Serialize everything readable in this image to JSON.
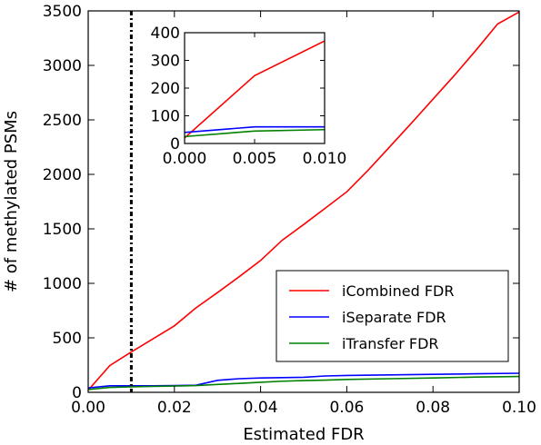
{
  "chart_data": {
    "type": "line",
    "title": "",
    "xlabel": "Estimated FDR",
    "ylabel": "# of methylated PSMs",
    "xlim": [
      0,
      0.1
    ],
    "ylim": [
      0,
      3500
    ],
    "x_ticks": [
      0.0,
      0.02,
      0.04,
      0.06,
      0.08,
      0.1
    ],
    "x_tick_labels": [
      "0.00",
      "0.02",
      "0.04",
      "0.06",
      "0.08",
      "0.10"
    ],
    "y_ticks": [
      0,
      500,
      1000,
      1500,
      2000,
      2500,
      3000,
      3500
    ],
    "y_tick_labels": [
      "0",
      "500",
      "1000",
      "1500",
      "2000",
      "2500",
      "3000",
      "3500"
    ],
    "grid": false,
    "legend_position": "bottom-right",
    "reference_line": {
      "x": 0.01,
      "style": "dash-dot",
      "color": "#000000"
    },
    "series": [
      {
        "name": "iCombined FDR",
        "color": "#ff0000",
        "x": [
          0.0,
          0.005,
          0.01,
          0.015,
          0.02,
          0.025,
          0.03,
          0.035,
          0.04,
          0.045,
          0.05,
          0.055,
          0.06,
          0.065,
          0.07,
          0.075,
          0.08,
          0.085,
          0.09,
          0.095,
          0.1
        ],
        "y": [
          20,
          245,
          370,
          490,
          610,
          775,
          915,
          1060,
          1210,
          1395,
          1540,
          1690,
          1840,
          2040,
          2255,
          2470,
          2690,
          2910,
          3140,
          3380,
          3490
        ]
      },
      {
        "name": "iSeparate FDR",
        "color": "#0000ff",
        "x": [
          0.0,
          0.005,
          0.01,
          0.015,
          0.02,
          0.025,
          0.03,
          0.035,
          0.04,
          0.045,
          0.05,
          0.055,
          0.06,
          0.07,
          0.08,
          0.09,
          0.1
        ],
        "y": [
          40,
          60,
          60,
          60,
          62,
          65,
          110,
          125,
          132,
          135,
          138,
          150,
          155,
          160,
          165,
          170,
          175
        ]
      },
      {
        "name": "iTransfer FDR",
        "color": "#008000",
        "x": [
          0.0,
          0.005,
          0.01,
          0.015,
          0.02,
          0.025,
          0.03,
          0.035,
          0.04,
          0.045,
          0.05,
          0.055,
          0.06,
          0.07,
          0.08,
          0.09,
          0.1
        ],
        "y": [
          25,
          45,
          50,
          55,
          58,
          62,
          72,
          82,
          92,
          102,
          108,
          112,
          118,
          125,
          132,
          140,
          145
        ]
      }
    ],
    "inset": {
      "xlim": [
        0,
        0.01
      ],
      "ylim": [
        0,
        400
      ],
      "x_ticks": [
        0.0,
        0.005,
        0.01
      ],
      "x_tick_labels": [
        "0.000",
        "0.005",
        "0.010"
      ],
      "y_ticks": [
        0,
        100,
        200,
        300,
        400
      ],
      "y_tick_labels": [
        "0",
        "100",
        "200",
        "300",
        "400"
      ]
    }
  }
}
